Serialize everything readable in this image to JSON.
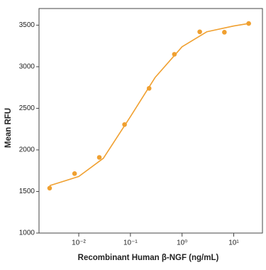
{
  "chart_data": {
    "type": "scatter",
    "x_label": "Recombinant Human β-NGF (ng/mL)",
    "y_label": "Mean RFU",
    "xscale": "log",
    "xlim": [
      0.0017,
      36
    ],
    "ylim": [
      1000,
      3700
    ],
    "xticks": [
      {
        "value": 0.01,
        "label": "10⁻²"
      },
      {
        "value": 0.1,
        "label": "10⁻¹"
      },
      {
        "value": 1,
        "label": "10⁰"
      },
      {
        "value": 10,
        "label": "10¹"
      }
    ],
    "yticks": [
      1000,
      1500,
      2000,
      2500,
      3000,
      3500
    ],
    "series": [
      {
        "type": "scatter",
        "color": "#f0a030",
        "x": [
          0.00273,
          0.0083,
          0.025,
          0.077,
          0.23,
          0.71,
          2.2,
          6.6,
          19.5
        ],
        "values": [
          1540,
          1715,
          1910,
          2305,
          2740,
          3150,
          3420,
          3415,
          3520
        ]
      },
      {
        "type": "line",
        "color": "#f0a030",
        "x": [
          0.00273,
          0.01,
          0.03,
          0.1,
          0.3,
          1,
          3,
          10,
          19.5
        ],
        "values": [
          1570,
          1680,
          1900,
          2400,
          2870,
          3240,
          3420,
          3490,
          3520
        ]
      }
    ]
  }
}
